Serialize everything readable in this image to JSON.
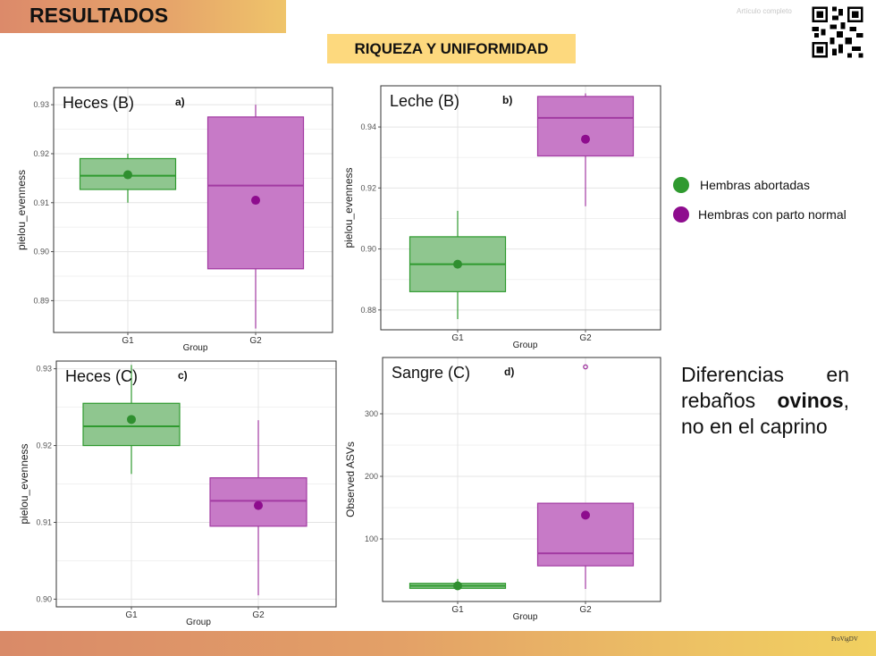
{
  "header": {
    "title": "RESULTADOS",
    "subtitle": "RIQUEZA Y UNIFORMIDAD",
    "article_link": "Artículo completo"
  },
  "footer": {
    "logo_text": "ProVigDV"
  },
  "legend": [
    {
      "label": "Hembras abortadas",
      "color": "#2f9a2f"
    },
    {
      "label": "Hembras con parto normal",
      "color": "#8e0c8e"
    }
  ],
  "conclusion": {
    "part1": "Diferencias en rebaños",
    "bold": "ovinos",
    "part2": ", no en el caprino"
  },
  "colors": {
    "g1_fill": "#8fc68f",
    "g1_stroke": "#2f9a2f",
    "g2_fill": "#c77ac7",
    "g2_stroke": "#a23aa2",
    "g1_dot": "#2f8f2f",
    "g2_dot": "#8e0c8e"
  },
  "chart_data": [
    {
      "type": "box",
      "panel_label": "Heces (B)",
      "letter": "a)",
      "xlabel": "Group",
      "ylabel": "pielou_evenness",
      "categories": [
        "G1",
        "G2"
      ],
      "ylim": [
        0.8835,
        0.9335
      ],
      "yticks": [
        0.89,
        0.9,
        0.91,
        0.92,
        0.93
      ],
      "tick_labels": [
        "0.89",
        "0.90",
        "0.91",
        "0.92",
        "0.93"
      ],
      "boxes": [
        {
          "group": "G1",
          "min": 0.91,
          "q1": 0.9127,
          "median": 0.9155,
          "q3": 0.919,
          "max": 0.92,
          "mean": 0.9157
        },
        {
          "group": "G2",
          "min": 0.8843,
          "q1": 0.8965,
          "median": 0.9135,
          "q3": 0.9275,
          "max": 0.93,
          "mean": 0.9105
        }
      ],
      "outliers": []
    },
    {
      "type": "box",
      "panel_label": "Leche (B)",
      "letter": "b)",
      "xlabel": "Group",
      "ylabel": "pielou_evenness",
      "categories": [
        "G1",
        "G2"
      ],
      "ylim": [
        0.8735,
        0.9535
      ],
      "yticks": [
        0.88,
        0.9,
        0.92,
        0.94
      ],
      "tick_labels": [
        "0.88",
        "0.90",
        "0.92",
        "0.94"
      ],
      "boxes": [
        {
          "group": "G1",
          "min": 0.877,
          "q1": 0.886,
          "median": 0.895,
          "q3": 0.904,
          "max": 0.9125,
          "mean": 0.895
        },
        {
          "group": "G2",
          "min": 0.914,
          "q1": 0.9305,
          "median": 0.943,
          "q3": 0.95,
          "max": 0.951,
          "mean": 0.936
        }
      ],
      "outliers": []
    },
    {
      "type": "box",
      "panel_label": "Heces (C)",
      "letter": "c)",
      "xlabel": "Group",
      "ylabel": "pielou_evenness",
      "categories": [
        "G1",
        "G2"
      ],
      "ylim": [
        0.899,
        0.931
      ],
      "yticks": [
        0.9,
        0.91,
        0.92,
        0.93
      ],
      "tick_labels": [
        "0.90",
        "0.91",
        "0.92",
        "0.93"
      ],
      "boxes": [
        {
          "group": "G1",
          "min": 0.9163,
          "q1": 0.92,
          "median": 0.9225,
          "q3": 0.9255,
          "max": 0.9305,
          "mean": 0.9234
        },
        {
          "group": "G2",
          "min": 0.9005,
          "q1": 0.9095,
          "median": 0.9128,
          "q3": 0.9158,
          "max": 0.9233,
          "mean": 0.9122
        }
      ],
      "outliers": []
    },
    {
      "type": "box",
      "panel_label": "Sangre (C)",
      "letter": "d)",
      "xlabel": "Group",
      "ylabel": "Observed ASVs",
      "categories": [
        "G1",
        "G2"
      ],
      "ylim": [
        0,
        390
      ],
      "yticks": [
        100,
        200,
        300
      ],
      "tick_labels": [
        "100",
        "200",
        "300"
      ],
      "boxes": [
        {
          "group": "G1",
          "min": 21,
          "q1": 21,
          "median": 25,
          "q3": 29,
          "max": 36,
          "mean": 25
        },
        {
          "group": "G2",
          "min": 20,
          "q1": 57,
          "median": 77,
          "q3": 157,
          "max": 157,
          "mean": 138
        }
      ],
      "outliers": [
        {
          "group": "G2",
          "value": 375
        }
      ]
    }
  ]
}
